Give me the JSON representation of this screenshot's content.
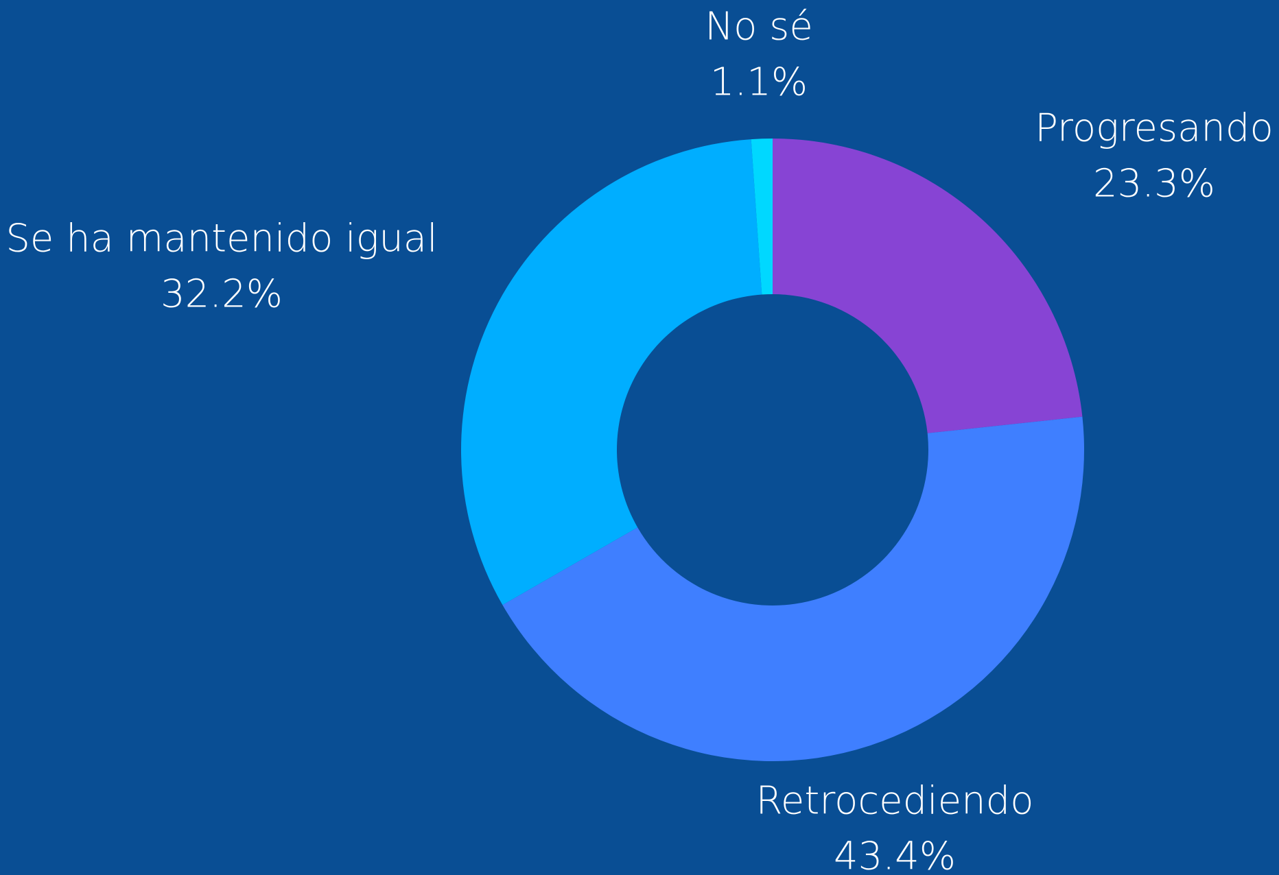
{
  "chart_data": {
    "type": "donut",
    "categories": [
      "Progresando",
      "Retrocediendo",
      "Se ha mantenido igual",
      "No sé"
    ],
    "values": [
      23.3,
      43.4,
      32.2,
      1.1
    ],
    "value_labels": [
      "23.3%",
      "43.4%",
      "32.2%",
      "1.1%"
    ],
    "colors": [
      "#8744d4",
      "#3f7fff",
      "#00aeff",
      "#00d8ff"
    ]
  }
}
